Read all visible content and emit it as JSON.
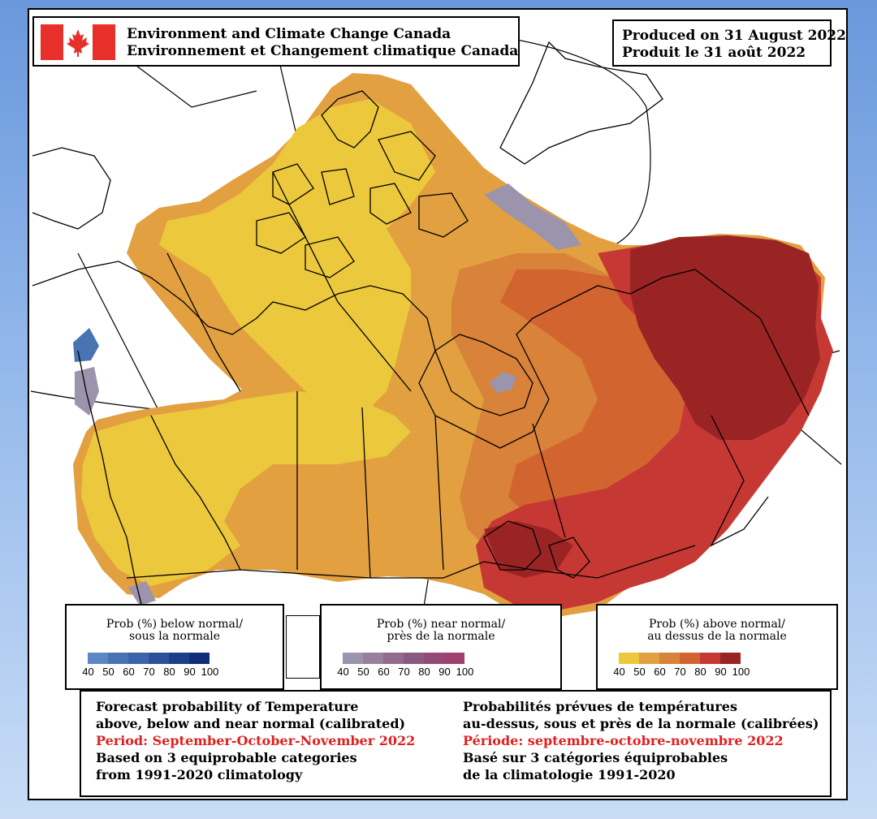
{
  "header": {
    "agency_en": "Environment and Climate Change Canada",
    "agency_fr": "Environnement et Changement climatique Canada",
    "produced_en": "Produced on 31 August 2022",
    "produced_fr": "Produit le 31 août 2022",
    "flag_icon": "canadian-flag-icon"
  },
  "legends": [
    {
      "key": "below",
      "title_line1": "Prob (%) below normal/",
      "title_line2": "sous la normale",
      "ticks": [
        "40",
        "50",
        "60",
        "70",
        "80",
        "90",
        "100"
      ],
      "colors": [
        "#5b87c3",
        "#4a73b4",
        "#3c64a8",
        "#2d5199",
        "#1d3f88",
        "#0f2d78"
      ]
    },
    {
      "key": "near",
      "title_line1": "Prob (%) near normal/",
      "title_line2": "près de la normale",
      "ticks": [
        "40",
        "50",
        "60",
        "70",
        "80",
        "90",
        "100"
      ],
      "colors": [
        "#9c94ac",
        "#98809c",
        "#926b8e",
        "#8a5880",
        "#944a76",
        "#a0406e"
      ]
    },
    {
      "key": "above",
      "title_line1": "Prob (%) above normal/",
      "title_line2": "au dessus de la normale",
      "ticks": [
        "40",
        "50",
        "60",
        "70",
        "80",
        "90",
        "100"
      ],
      "colors": [
        "#ecc83c",
        "#e2a040",
        "#d8823a",
        "#d26430",
        "#c63834",
        "#9a2424"
      ]
    }
  ],
  "info": {
    "en": [
      "Forecast probability of Temperature",
      "above, below and near normal (calibrated)",
      "Period: September-October-November 2022",
      "Based on 3 equiprobable categories",
      " from 1991-2020 climatology"
    ],
    "fr": [
      "Probabilités prévues de températures",
      "au-dessus, sous et près de la normale (calibrées)",
      "Période: septembre-octobre-novembre 2022",
      "Basé sur 3 catégories équiprobables",
      "de la climatologie 1991-2020"
    ],
    "highlight_color": "#e02020"
  },
  "map_colors": {
    "above_40": "#ecc83c",
    "above_50": "#e2a040",
    "above_60": "#d8823a",
    "above_70": "#d26430",
    "above_80": "#c63834",
    "above_90": "#9a2424",
    "near_40": "#9c94ac",
    "below_50": "#4a73b4"
  }
}
